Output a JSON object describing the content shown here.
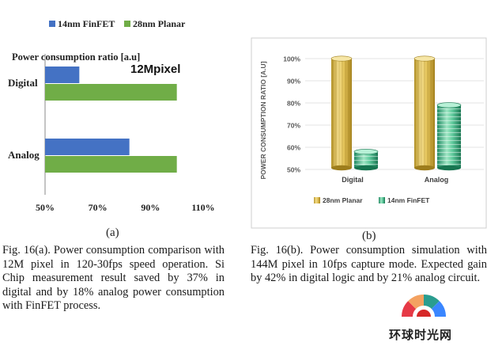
{
  "panel_a_label": "(a)",
  "panel_b_label": "(b)",
  "caption_a": "Fig. 16(a). Power consumption comparison with 12M pixel in 120-30fps speed operation. Si Chip measurement result saved by 37% in digital and by 18% analog power consumption with FinFET process.",
  "caption_b": "Fig. 16(b). Power consumption simulation with 144M pixel in 10fps capture mode. Expected gain by 42% in digital logic and by 21% analog circuit.",
  "watermark": "环球时光网",
  "colors": {
    "finfet_blue": "#4472c4",
    "planar_green": "#70ad47",
    "gold_cylinder": "#d8b84c",
    "teal_cylinder": "#46b88a"
  },
  "chart_data": [
    {
      "type": "bar",
      "orientation": "horizontal",
      "title": "Power consumption ratio [a.u]",
      "annotation": "12Mpixel",
      "categories": [
        "Digital",
        "Analog"
      ],
      "series": [
        {
          "name": "14nm FinFET",
          "values": [
            63,
            82
          ]
        },
        {
          "name": "28nm Planar",
          "values": [
            100,
            100
          ]
        }
      ],
      "xlim": [
        50,
        110
      ],
      "xticks": [
        "50%",
        "70%",
        "90%",
        "110%"
      ],
      "legend": "top"
    },
    {
      "type": "bar",
      "orientation": "vertical",
      "style": "3d-cylinder",
      "ylabel": "POWER CONSUMPTION RATIO [A.U]",
      "categories": [
        "Digital",
        "Analog"
      ],
      "series": [
        {
          "name": "28nm Planar",
          "values": [
            100,
            100
          ]
        },
        {
          "name": "14nm FinFET",
          "values": [
            58,
            79
          ]
        }
      ],
      "ylim": [
        50,
        100
      ],
      "yticks": [
        "50%",
        "60%",
        "70%",
        "80%",
        "90%",
        "100%"
      ],
      "grid": true,
      "legend": "bottom"
    }
  ]
}
